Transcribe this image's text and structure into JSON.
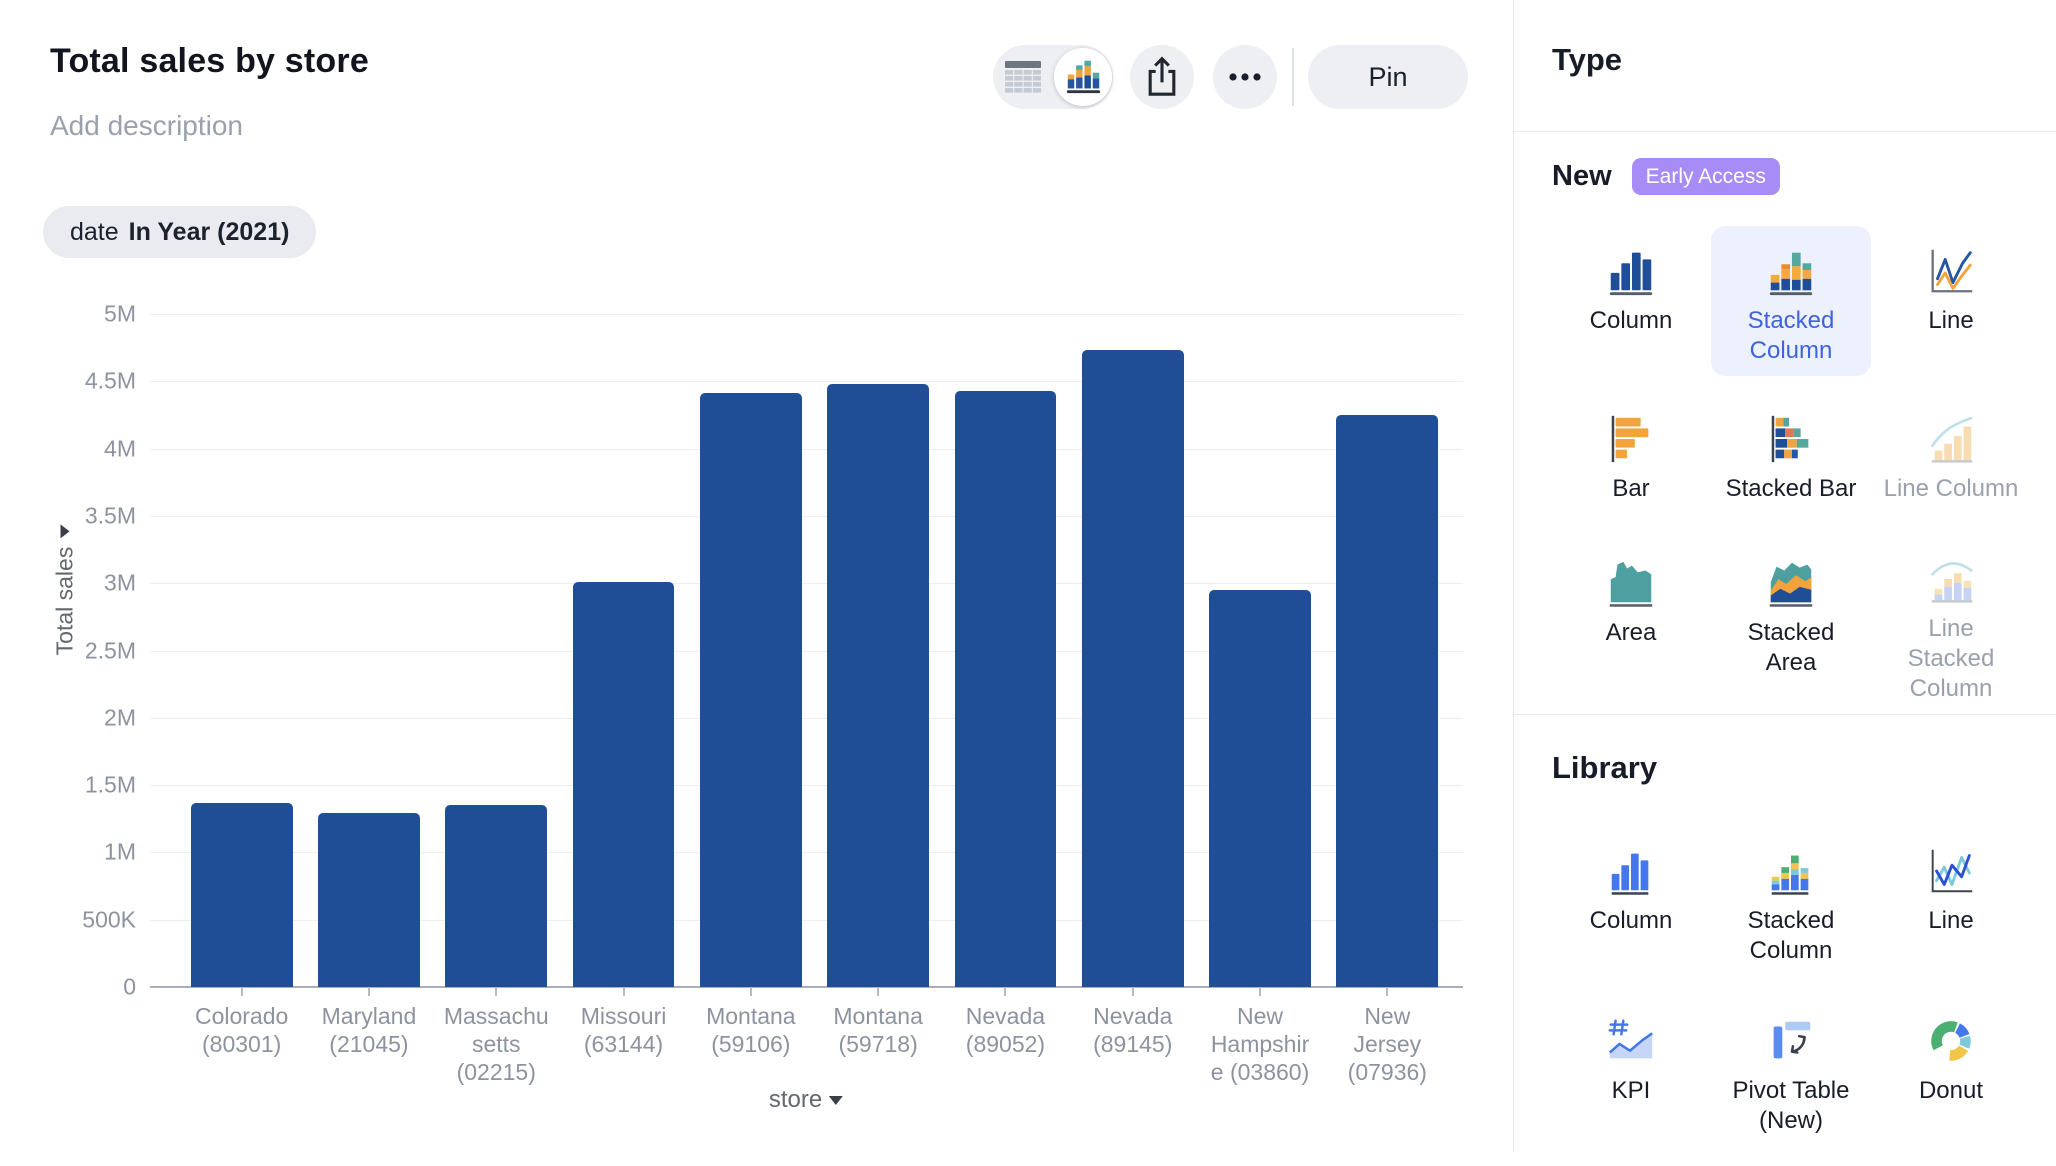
{
  "header": {
    "title": "Total sales by store",
    "description_placeholder": "Add description"
  },
  "toolbar": {
    "pin_label": "Pin",
    "view_toggle": {
      "selected": "chart",
      "table_icon": "table-view-icon",
      "chart_icon": "chart-view-icon"
    },
    "share_icon": "share-icon",
    "more_icon": "ellipsis-icon"
  },
  "filter_chip": {
    "field": "date",
    "condition": "In Year (2021)"
  },
  "chart_data": {
    "type": "bar",
    "title": "Total sales by store",
    "xlabel": "store",
    "ylabel": "Total sales",
    "ylim": [
      0,
      5000000
    ],
    "ytick_interval": 500000,
    "ytick_labels": [
      "0",
      "500K",
      "1M",
      "1.5M",
      "2M",
      "2.5M",
      "3M",
      "3.5M",
      "4M",
      "4.5M",
      "5M"
    ],
    "grid": true,
    "legend": false,
    "bar_color": "#1F4E96",
    "categories": [
      "Colorado (80301)",
      "Maryland (21045)",
      "Massachusetts (02215)",
      "Missouri (63144)",
      "Montana (59106)",
      "Montana (59718)",
      "Nevada (89052)",
      "Nevada (89145)",
      "New Hampshire (03860)",
      "New Jersey (07936)"
    ],
    "category_label_lines": [
      [
        "Colorado",
        "(80301)"
      ],
      [
        "Maryland",
        "(21045)"
      ],
      [
        "Massachu",
        "setts",
        "(02215)"
      ],
      [
        "Missouri",
        "(63144)"
      ],
      [
        "Montana",
        "(59106)"
      ],
      [
        "Montana",
        "(59718)"
      ],
      [
        "Nevada",
        "(89052)"
      ],
      [
        "Nevada",
        "(89145)"
      ],
      [
        "New",
        "Hampshir",
        "e (03860)"
      ],
      [
        "New",
        "Jersey",
        "(07936)"
      ]
    ],
    "values": [
      1370000,
      1290000,
      1350000,
      3010000,
      4410000,
      4480000,
      4430000,
      4730000,
      2950000,
      4250000
    ]
  },
  "sidebar": {
    "title": "Type",
    "colors": {
      "selected_bg": "#ECF1FD",
      "selected_text": "#3E63DD",
      "badge_bg": "#A78BF7"
    },
    "new_section": {
      "label": "New",
      "badge": "Early Access",
      "items": [
        {
          "label": "Column",
          "icon": "column-icon",
          "state": "normal"
        },
        {
          "label": "Stacked Column",
          "icon": "stacked-column-icon",
          "state": "selected"
        },
        {
          "label": "Line",
          "icon": "line-icon",
          "state": "normal"
        },
        {
          "label": "Bar",
          "icon": "bar-icon",
          "state": "normal"
        },
        {
          "label": "Stacked Bar",
          "icon": "stacked-bar-icon",
          "state": "normal"
        },
        {
          "label": "Line Column",
          "icon": "line-column-icon",
          "state": "disabled"
        },
        {
          "label": "Area",
          "icon": "area-icon",
          "state": "normal"
        },
        {
          "label": "Stacked Area",
          "icon": "stacked-area-icon",
          "state": "normal"
        },
        {
          "label": "Line Stacked Column",
          "icon": "line-stacked-column-icon",
          "state": "disabled"
        }
      ]
    },
    "library_section": {
      "label": "Library",
      "items": [
        {
          "label": "Column",
          "icon": "library-column-icon",
          "state": "normal"
        },
        {
          "label": "Stacked Column",
          "icon": "library-stacked-column-icon",
          "state": "normal"
        },
        {
          "label": "Line",
          "icon": "library-line-icon",
          "state": "normal"
        },
        {
          "label": "KPI",
          "icon": "kpi-icon",
          "state": "normal"
        },
        {
          "label": "Pivot Table (New)",
          "icon": "pivot-table-icon",
          "state": "normal"
        },
        {
          "label": "Donut",
          "icon": "donut-icon",
          "state": "normal"
        }
      ]
    }
  }
}
